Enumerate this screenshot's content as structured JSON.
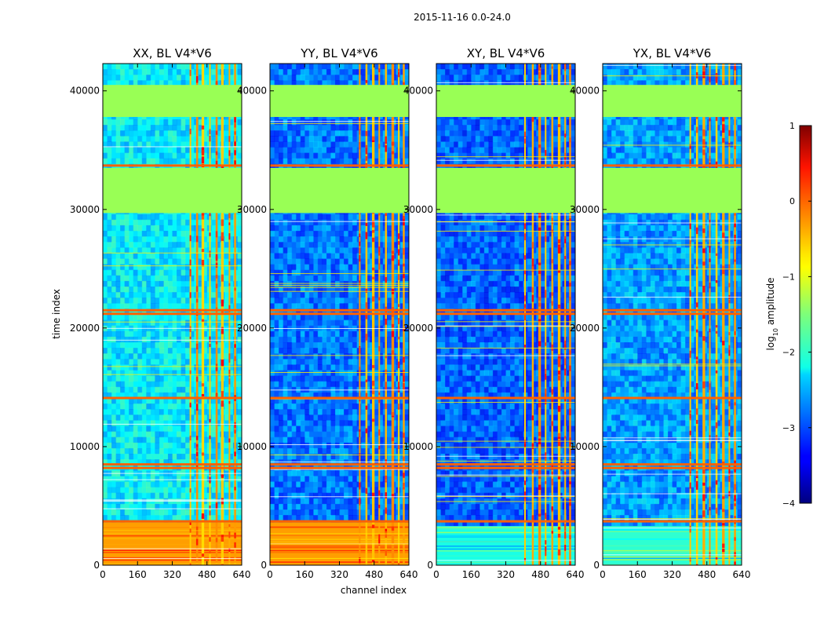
{
  "chart_data": {
    "type": "heatmap",
    "suptitle": "2015-11-16 0.0-24.0",
    "ylabel": "time index",
    "xlabel": "channel index",
    "xlim": [
      0,
      640
    ],
    "ylim": [
      0,
      42300
    ],
    "xticks": [
      0,
      160,
      320,
      480,
      640
    ],
    "yticks": [
      0,
      10000,
      20000,
      30000,
      40000
    ],
    "colorbar": {
      "label_main": "log",
      "label_sub": "10",
      "label_tail": " amplitude",
      "vmin": -4,
      "vmax": 1,
      "ticks": [
        -4,
        -3,
        -2,
        -1,
        0,
        1
      ],
      "colormap": "jet"
    },
    "panels": [
      {
        "title": "XX, BL V4*V6",
        "background_level": -2.2,
        "bottom_level": -0.4,
        "bottom_top": 3600,
        "stripe_cols": [
          400,
          430,
          455,
          490,
          520,
          545,
          580,
          605
        ]
      },
      {
        "title": "YY, BL V4*V6",
        "background_level": -2.8,
        "bottom_level": -0.4,
        "bottom_top": 3600,
        "stripe_cols": [
          410,
          440,
          470,
          500,
          530,
          560,
          590,
          612
        ]
      },
      {
        "title": "XY, BL V4*V6",
        "background_level": -2.9,
        "bottom_level": -2.0,
        "bottom_top": 3300,
        "stripe_cols": [
          405,
          440,
          470,
          500,
          530,
          560,
          590,
          612
        ]
      },
      {
        "title": "YX, BL V4*V6",
        "background_level": -2.6,
        "bottom_level": -1.9,
        "bottom_top": 3300,
        "stripe_cols": [
          400,
          430,
          460,
          490,
          520,
          550,
          580,
          605
        ]
      }
    ],
    "flagged_blocks": [
      {
        "from": 29700,
        "to": 33500
      },
      {
        "from": 37800,
        "to": 40500
      }
    ],
    "flag_color": "#99ff55",
    "hot_rows": [
      3700,
      8200,
      8500,
      14100,
      21200,
      21500,
      33700
    ]
  }
}
